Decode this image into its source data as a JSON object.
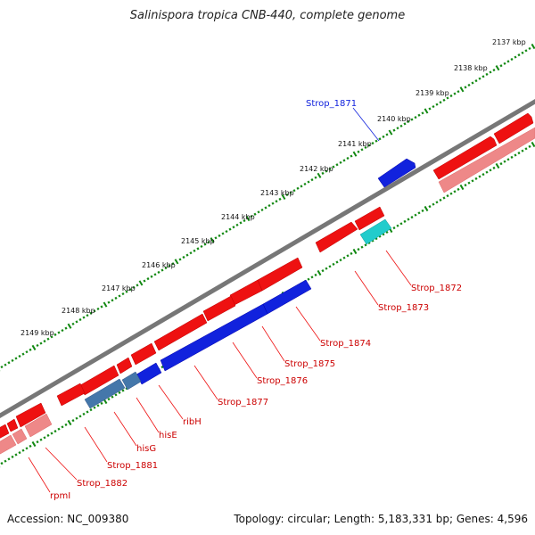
{
  "title": "Salinispora tropica CNB-440, complete genome",
  "footer": {
    "accession": "Accession: NC_009380",
    "info": "Topology: circular; Length: 5,183,331 bp; Genes: 4,596"
  },
  "ruler_labels": [
    "2137 kbp",
    "2138 kbp",
    "2139 kbp",
    "2140 kbp",
    "2141 kbp",
    "2142 kbp",
    "2143 kbp",
    "2144 kbp",
    "2145 kbp",
    "2146 kbp",
    "2147 kbp",
    "2148 kbp",
    "2149 kbp"
  ],
  "gene_labels": [
    "Strop_1871",
    "Strop_1872",
    "Strop_1873",
    "Strop_1874",
    "Strop_1875",
    "Strop_1876",
    "Strop_1877",
    "ribH",
    "hisE",
    "hisG",
    "Strop_1881",
    "Strop_1882",
    "rpmI"
  ],
  "colors": {
    "forward_cds": "#ee1111",
    "pseudo_light": "#ee8888",
    "reverse_cds": "#1122dd",
    "steel": "#4477aa",
    "cyan": "#22cccc",
    "backbone": "#777777",
    "tick": "#118811"
  }
}
